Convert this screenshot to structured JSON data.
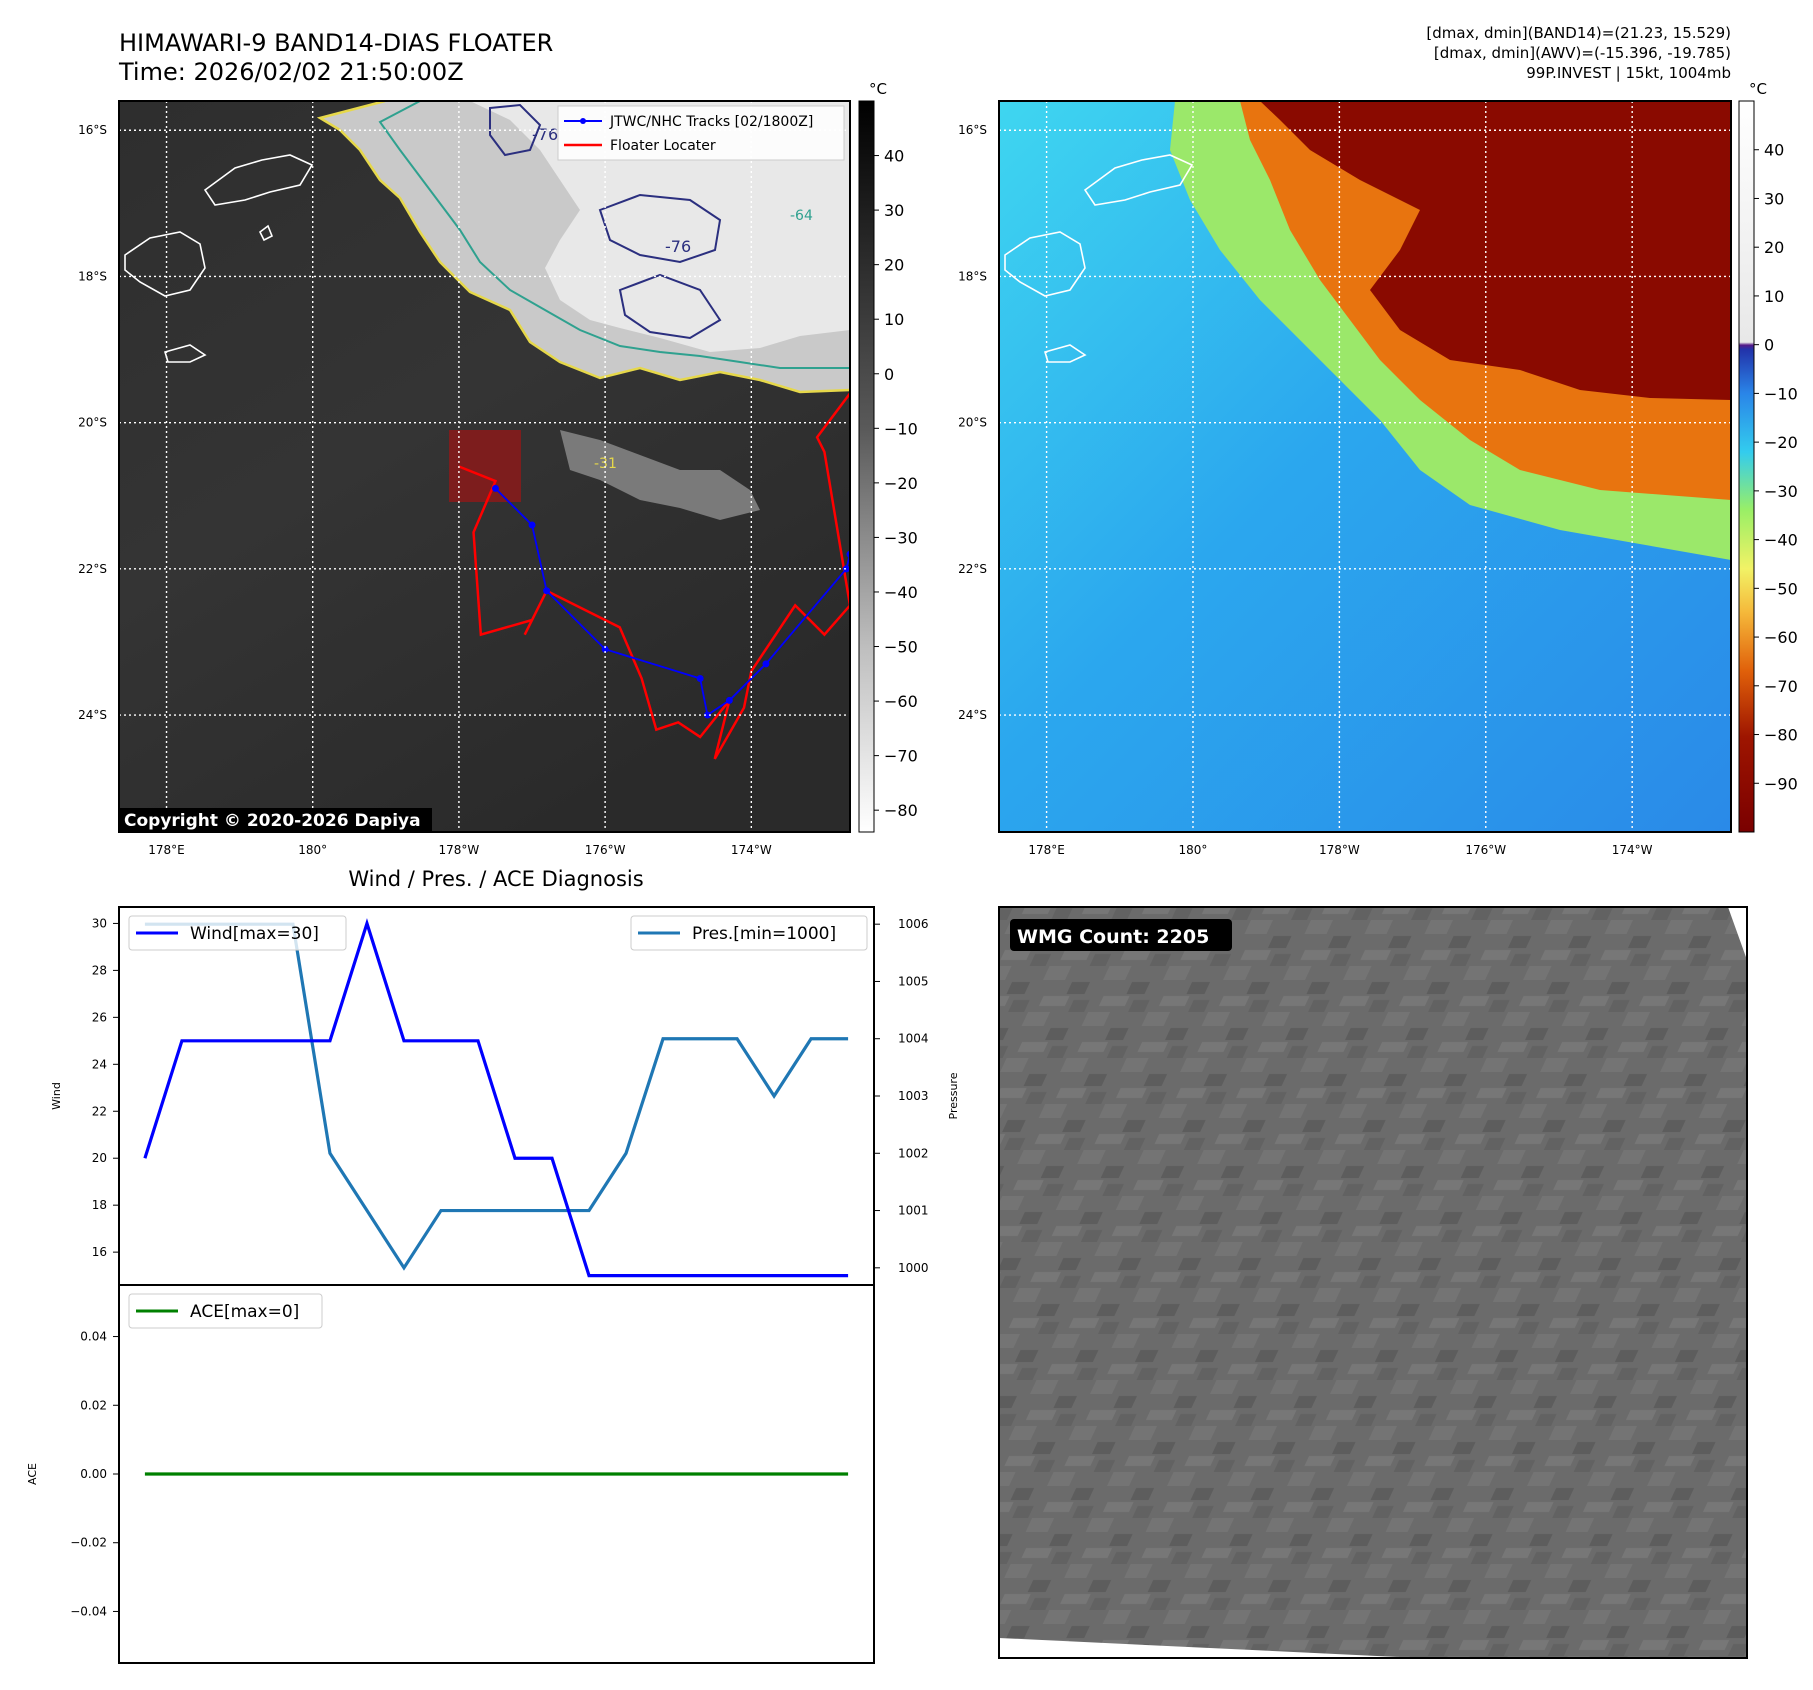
{
  "header": {
    "title": "HIMAWARI-9 BAND14-DIAS FLOATER",
    "time": "Time: 2026/02/02 21:50:00Z",
    "info_lines": [
      "[dmax, dmin](BAND14)=(21.23, 15.529)",
      "[dmax, dmin](AWV)=(-15.396, -19.785)",
      "99P.INVEST | 15kt, 1004mb"
    ]
  },
  "maps": {
    "lat_labels": [
      "16°S",
      "18°S",
      "20°S",
      "22°S",
      "24°S"
    ],
    "lat_values": [
      -16,
      -18,
      -20,
      -22,
      -24
    ],
    "lon_labels": [
      "178°E",
      "180°",
      "178°W",
      "176°W",
      "174°W"
    ],
    "lon_values": [
      178,
      180,
      182,
      184,
      186
    ],
    "lon_range": [
      177.35,
      187.35
    ],
    "lat_range": [
      -25.6,
      -15.6
    ],
    "copyright": "Copyright © 2020-2026 Dapiya",
    "legend": [
      "JTWC/NHC Tracks [02/1800Z]",
      "Floater Locater"
    ],
    "contour_labels": [
      "-76",
      "-64",
      "-76",
      "-31"
    ],
    "colors": {
      "track": "#0000ff",
      "locator": "#ff0000",
      "box": "#8b1a1a"
    }
  },
  "colorbar_left": {
    "unit": "°C",
    "ticks": [
      "40",
      "30",
      "20",
      "10",
      "0",
      "−10",
      "−20",
      "−30",
      "−40",
      "−50",
      "−60",
      "−70",
      "−80"
    ],
    "tick_values": [
      40,
      30,
      20,
      10,
      0,
      -10,
      -20,
      -30,
      -40,
      -50,
      -60,
      -70,
      -80
    ],
    "range": [
      -84,
      50
    ]
  },
  "colorbar_right": {
    "unit": "°C",
    "ticks": [
      "40",
      "30",
      "20",
      "10",
      "0",
      "−10",
      "−20",
      "−30",
      "−40",
      "−50",
      "−60",
      "−70",
      "−80",
      "−90"
    ],
    "tick_values": [
      40,
      30,
      20,
      10,
      0,
      -10,
      -20,
      -30,
      -40,
      -50,
      -60,
      -70,
      -80,
      -90
    ],
    "range": [
      -100,
      50
    ]
  },
  "diagnosis": {
    "title": "Wind / Pres. / ACE Diagnosis",
    "wind_label": "Wind",
    "pressure_label": "Pressure",
    "ace_label": "ACE",
    "wind_legend": "Wind[max=30]",
    "pressure_legend": "Pres.[min=1000]",
    "ace_legend": "ACE[max=0]",
    "wind_ticks": [
      "16",
      "18",
      "20",
      "22",
      "24",
      "26",
      "28",
      "30"
    ],
    "pressure_ticks": [
      "1000",
      "1001",
      "1002",
      "1003",
      "1004",
      "1005",
      "1006"
    ],
    "ace_ticks": [
      "0.04",
      "0.02",
      "0.00",
      "−0.02",
      "−0.04"
    ]
  },
  "wmg": {
    "label": "WMG Count: 2205"
  },
  "chart_data": [
    {
      "type": "line",
      "title": "Wind / Pres. / ACE Diagnosis",
      "x": [
        0,
        1,
        2,
        3,
        4,
        5,
        6,
        7,
        8,
        9,
        10,
        11,
        12,
        13,
        14,
        15,
        16,
        17,
        18,
        19
      ],
      "series": [
        {
          "name": "Wind[max=30]",
          "axis": "left",
          "values": [
            20,
            25,
            25,
            25,
            25,
            25,
            30,
            25,
            25,
            25,
            20,
            20,
            15,
            15,
            15,
            15,
            15,
            15,
            15,
            15
          ]
        },
        {
          "name": "Pres.[min=1000]",
          "axis": "right",
          "values": [
            1006,
            1006,
            1006,
            1006,
            1006,
            1002,
            1001,
            1000,
            1001,
            1001,
            1001,
            1001,
            1001,
            1002,
            1004,
            1004,
            1004,
            1003,
            1004,
            1004
          ]
        }
      ],
      "ylabel": "Wind",
      "ylim": [
        14.6,
        30.7
      ],
      "y2label": "Pressure",
      "y2lim": [
        999.7,
        1006.3
      ],
      "colors": {
        "Wind": "#0000ff",
        "Pres.": "#1f77b4"
      }
    },
    {
      "type": "line",
      "x": [
        0,
        1,
        2,
        3,
        4,
        5,
        6,
        7,
        8,
        9,
        10,
        11,
        12,
        13,
        14,
        15,
        16,
        17,
        18,
        19
      ],
      "series": [
        {
          "name": "ACE[max=0]",
          "values": [
            0,
            0,
            0,
            0,
            0,
            0,
            0,
            0,
            0,
            0,
            0,
            0,
            0,
            0,
            0,
            0,
            0,
            0,
            0,
            0
          ]
        }
      ],
      "ylabel": "ACE",
      "ylim": [
        -0.055,
        0.055
      ],
      "colors": {
        "ACE": "#008000"
      }
    },
    {
      "type": "line",
      "title": "",
      "series": [
        {
          "name": "JTWC/NHC Tracks [02/1800Z]",
          "lon": [
            182.5,
            183.0,
            183.2,
            184.0,
            185.3,
            185.4,
            185.7,
            186.2,
            187.3,
            187.35
          ],
          "lat": [
            -20.9,
            -21.4,
            -22.3,
            -23.1,
            -23.5,
            -24.0,
            -23.8,
            -23.3,
            -22.0,
            -21.8
          ]
        },
        {
          "name": "Floater Locater",
          "lon": [
            182.0,
            182.5,
            182.2,
            182.3,
            183.0,
            182.9,
            183.2,
            184.2,
            184.5,
            184.7,
            185.0,
            185.3,
            185.7,
            185.5,
            185.9,
            186.0,
            186.6,
            187.0,
            187.35,
            187.0,
            186.9,
            187.35
          ],
          "lat": [
            -20.6,
            -20.8,
            -21.5,
            -22.9,
            -22.7,
            -22.9,
            -22.3,
            -22.8,
            -23.5,
            -24.2,
            -24.1,
            -24.3,
            -23.8,
            -24.6,
            -23.9,
            -23.4,
            -22.5,
            -22.9,
            -22.5,
            -20.4,
            -20.2,
            -19.6
          ]
        }
      ]
    }
  ]
}
